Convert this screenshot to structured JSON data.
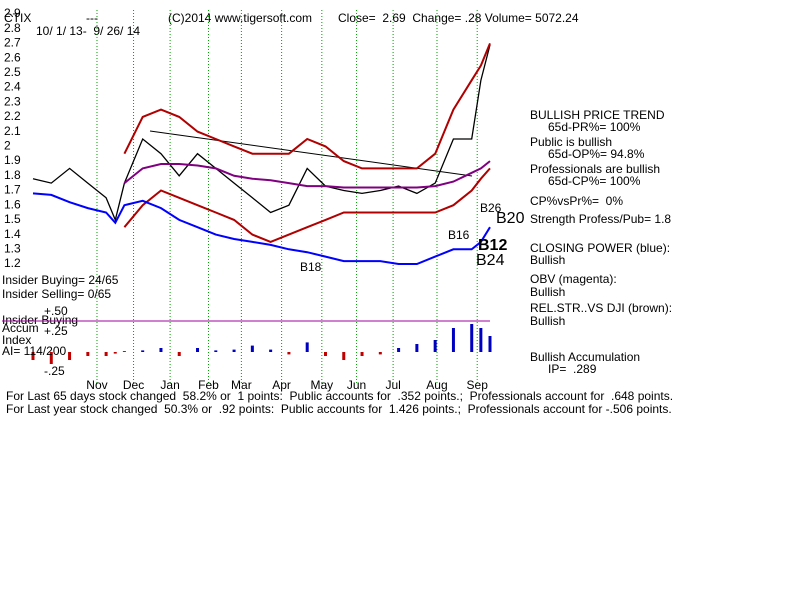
{
  "header": {
    "symbol": "CTIX",
    "dashes": "---",
    "copyright": "(C)2014 www.tigersoft.com",
    "quote": "Close=  2.69  Change= .28 Volume= 5072.24",
    "range": "10/ 1/ 13-  9/ 26/ 14"
  },
  "chart_data": [
    {
      "type": "line",
      "x": [
        0,
        10,
        20,
        30,
        40,
        45,
        50,
        60,
        70,
        80,
        90,
        100,
        110,
        120,
        130,
        140,
        150,
        160,
        170,
        180,
        190,
        200,
        210,
        220,
        230,
        240,
        245,
        250
      ],
      "xlim": [
        0,
        250
      ],
      "xticks": [
        {
          "value": 35,
          "label": "Nov"
        },
        {
          "value": 55,
          "label": "Dec"
        },
        {
          "value": 75,
          "label": "Jan"
        },
        {
          "value": 96,
          "label": "Feb"
        },
        {
          "value": 114,
          "label": "Mar"
        },
        {
          "value": 136,
          "label": "Apr"
        },
        {
          "value": 158,
          "label": "May"
        },
        {
          "value": 177,
          "label": "Jun"
        },
        {
          "value": 197,
          "label": "Jul"
        },
        {
          "value": 221,
          "label": "Aug"
        },
        {
          "value": 243,
          "label": "Sep"
        }
      ],
      "ylim": [
        1.2,
        2.9
      ],
      "yticks": [
        2.9,
        2.8,
        2.7,
        2.6,
        2.5,
        2.4,
        2.3,
        2.2,
        2.1,
        {
          "value": 2.0,
          "label": "2"
        },
        1.9,
        1.8,
        1.7,
        1.6,
        1.5,
        1.4,
        1.3,
        1.2
      ],
      "grid": "x",
      "series": [
        {
          "color": "#000000",
          "values": [
            1.78,
            1.75,
            1.85,
            1.75,
            1.65,
            1.5,
            1.75,
            2.05,
            1.95,
            1.8,
            1.95,
            1.85,
            1.75,
            1.65,
            1.55,
            1.6,
            1.85,
            1.73,
            1.7,
            1.68,
            1.7,
            1.73,
            1.68,
            1.75,
            2.05,
            2.05,
            2.45,
            2.69
          ]
        },
        {
          "color": "#b00000",
          "values": [
            null,
            null,
            null,
            null,
            null,
            null,
            1.95,
            2.2,
            2.25,
            2.2,
            2.1,
            2.05,
            2.0,
            1.95,
            1.95,
            1.95,
            2.05,
            2.0,
            1.9,
            1.85,
            1.85,
            1.85,
            1.85,
            1.95,
            2.25,
            2.45,
            2.55,
            2.7
          ]
        },
        {
          "color": "#b00000",
          "values": [
            null,
            null,
            null,
            null,
            null,
            null,
            1.45,
            1.6,
            1.7,
            1.65,
            1.6,
            1.55,
            1.5,
            1.4,
            1.35,
            1.4,
            1.45,
            1.5,
            1.55,
            1.55,
            1.55,
            1.55,
            1.55,
            1.55,
            1.6,
            1.7,
            1.78,
            1.85
          ]
        },
        {
          "color": "#800080",
          "values": [
            null,
            null,
            null,
            null,
            null,
            null,
            1.75,
            1.85,
            1.88,
            1.88,
            1.87,
            1.85,
            1.8,
            1.78,
            1.77,
            1.75,
            1.73,
            1.73,
            1.72,
            1.72,
            1.72,
            1.72,
            1.72,
            1.73,
            1.76,
            1.82,
            1.85,
            1.9
          ]
        },
        {
          "color": "#0000ff",
          "values": [
            1.68,
            1.67,
            1.62,
            1.58,
            1.55,
            1.48,
            1.6,
            1.63,
            1.58,
            1.5,
            1.45,
            1.4,
            1.37,
            1.35,
            1.33,
            1.3,
            1.28,
            1.25,
            1.22,
            1.22,
            1.22,
            1.2,
            1.2,
            1.25,
            1.3,
            1.3,
            1.35,
            1.45
          ]
        }
      ],
      "annotations": [
        "B26",
        "B20",
        "B16",
        "B12",
        "B24",
        "B18"
      ]
    },
    {
      "type": "bar",
      "x": [
        0,
        10,
        20,
        30,
        40,
        45,
        50,
        60,
        70,
        80,
        90,
        100,
        110,
        120,
        130,
        140,
        150,
        160,
        170,
        180,
        190,
        200,
        210,
        220,
        230,
        240,
        245,
        250
      ],
      "xlim": [
        0,
        250
      ],
      "ylim": [
        -0.3,
        0.55
      ],
      "yticks": [
        {
          "value": 0.5,
          "label": "+.50"
        },
        {
          "value": 0.25,
          "label": "+.25"
        },
        {
          "value": -0.25,
          "label": "-.25"
        }
      ],
      "positive_color": "#0000c0",
      "negative_color": "#c00000",
      "values": [
        -0.1,
        -0.15,
        -0.1,
        -0.05,
        -0.05,
        -0.02,
        0.01,
        0.02,
        0.05,
        -0.05,
        0.05,
        0.02,
        0.03,
        0.08,
        0.03,
        -0.03,
        0.12,
        -0.05,
        -0.1,
        -0.05,
        -0.03,
        0.05,
        0.1,
        0.15,
        0.3,
        0.35,
        0.3,
        0.2
      ]
    }
  ],
  "insider": [
    "Insider Buying= 24/65",
    "Insider Selling= 0/65",
    "Insider Buying",
    "Accum",
    "Index",
    "AI= 114/200"
  ],
  "summary": [
    "BULLISH PRICE TREND",
    "65d-PR%= 100%",
    "Public is bullish",
    "65d-OP%= 94.8%",
    "Professionals are bullish",
    "65d-CP%= 100%",
    "CP%vsPr%=  0%",
    "Strength Profess/Pub= 1.8",
    "CLOSING POWER (blue):",
    "Bullish",
    "OBV (magenta):",
    "Bullish",
    "REL.STR..VS DJI (brown):",
    "Bullish",
    "Bullish Accumulation",
    "IP=  .289"
  ],
  "footer": [
    "For Last 65 days stock changed  58.2% or  1 points:  Public accounts for  .352 points.;  Professionals account for  .648 points.",
    "For Last year stock changed  50.3% or  .92 points:  Public accounts for  1.426 points.;  Professionals account for -.506 points."
  ]
}
